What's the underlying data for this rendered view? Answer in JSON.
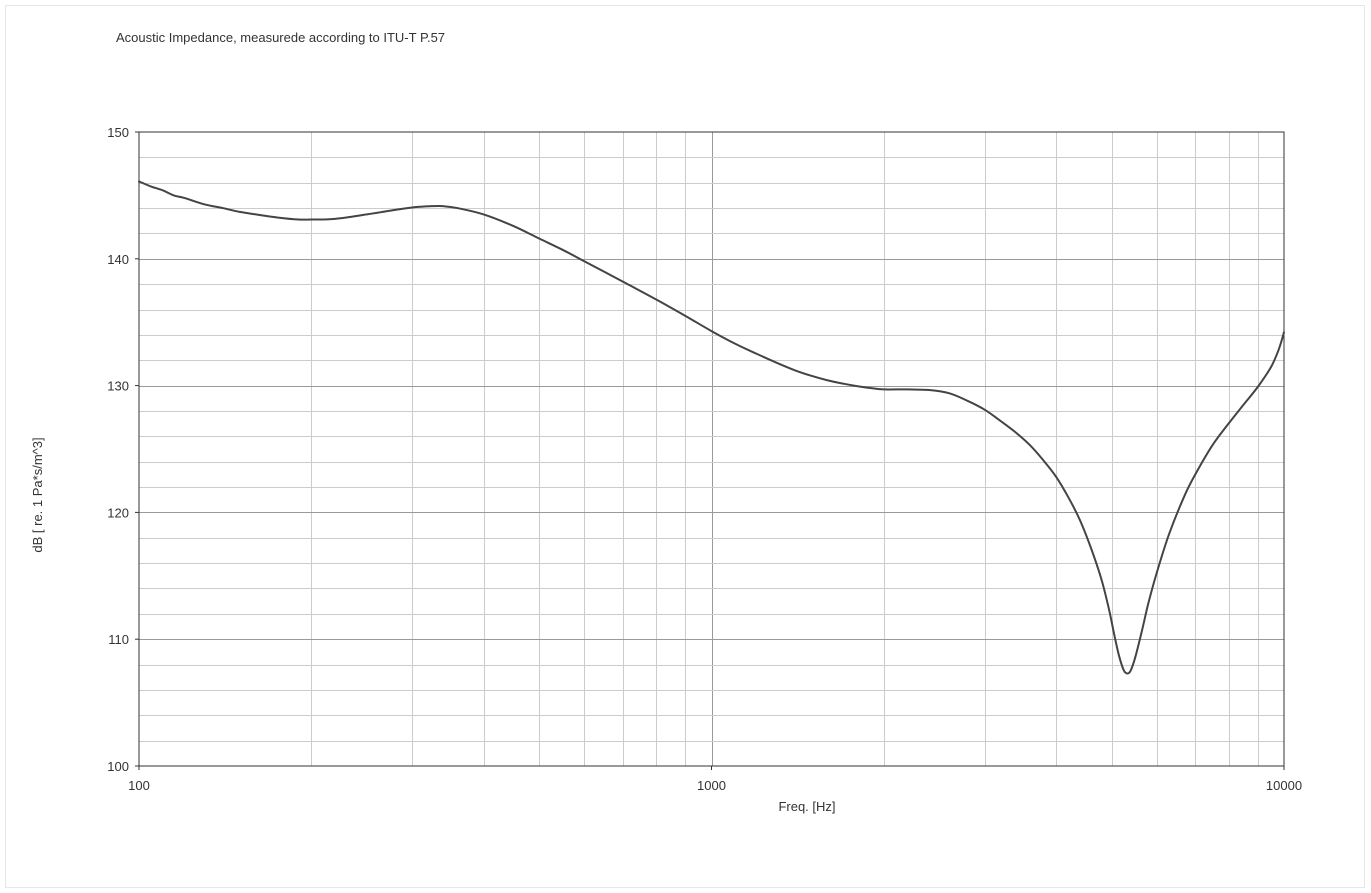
{
  "chart_data": {
    "type": "line",
    "title": "Acoustic Impedance, measurede according to ITU-T P.57",
    "xlabel": "Freq. [Hz]",
    "ylabel": "dB [ re. 1 Pa*s/m^3]",
    "xscale": "log",
    "xlim": [
      100,
      10000
    ],
    "ylim": [
      100,
      150
    ],
    "x_ticks": [
      {
        "value": 100,
        "label": "100"
      },
      {
        "value": 1000,
        "label": "1000"
      },
      {
        "value": 10000,
        "label": "10000"
      }
    ],
    "y_ticks": [
      {
        "value": 100,
        "label": "100"
      },
      {
        "value": 110,
        "label": "110"
      },
      {
        "value": 120,
        "label": "120"
      },
      {
        "value": 130,
        "label": "130"
      },
      {
        "value": 140,
        "label": "140"
      },
      {
        "value": 150,
        "label": "150"
      }
    ],
    "grid": true,
    "legend": "none",
    "colors": {
      "line": "#444444",
      "major_grid": "#9a9a9a",
      "minor_grid": "#cccccc",
      "axis": "#333333",
      "text": "#333333"
    },
    "series": [
      {
        "values": [
          [
            100,
            146.1
          ],
          [
            105,
            145.7
          ],
          [
            110,
            145.4
          ],
          [
            115,
            145.0
          ],
          [
            120,
            144.8
          ],
          [
            130,
            144.3
          ],
          [
            140,
            144.0
          ],
          [
            150,
            143.7
          ],
          [
            160,
            143.5
          ],
          [
            175,
            143.25
          ],
          [
            190,
            143.1
          ],
          [
            200,
            143.1
          ],
          [
            220,
            143.15
          ],
          [
            250,
            143.5
          ],
          [
            275,
            143.8
          ],
          [
            300,
            144.05
          ],
          [
            325,
            144.15
          ],
          [
            340,
            144.15
          ],
          [
            360,
            144.0
          ],
          [
            400,
            143.5
          ],
          [
            450,
            142.6
          ],
          [
            500,
            141.6
          ],
          [
            550,
            140.7
          ],
          [
            600,
            139.8
          ],
          [
            700,
            138.2
          ],
          [
            800,
            136.8
          ],
          [
            900,
            135.5
          ],
          [
            1000,
            134.3
          ],
          [
            1100,
            133.3
          ],
          [
            1200,
            132.5
          ],
          [
            1300,
            131.8
          ],
          [
            1400,
            131.2
          ],
          [
            1500,
            130.75
          ],
          [
            1600,
            130.4
          ],
          [
            1700,
            130.15
          ],
          [
            1800,
            129.95
          ],
          [
            1900,
            129.8
          ],
          [
            2000,
            129.7
          ],
          [
            2200,
            129.7
          ],
          [
            2400,
            129.65
          ],
          [
            2600,
            129.4
          ],
          [
            2800,
            128.8
          ],
          [
            3000,
            128.1
          ],
          [
            3200,
            127.2
          ],
          [
            3400,
            126.3
          ],
          [
            3600,
            125.3
          ],
          [
            3800,
            124.1
          ],
          [
            4000,
            122.8
          ],
          [
            4200,
            121.2
          ],
          [
            4400,
            119.4
          ],
          [
            4600,
            117.2
          ],
          [
            4800,
            114.7
          ],
          [
            4950,
            112.3
          ],
          [
            5050,
            110.4
          ],
          [
            5150,
            108.7
          ],
          [
            5250,
            107.55
          ],
          [
            5330,
            107.3
          ],
          [
            5400,
            107.55
          ],
          [
            5500,
            108.6
          ],
          [
            5650,
            110.7
          ],
          [
            5800,
            112.9
          ],
          [
            6000,
            115.3
          ],
          [
            6300,
            118.3
          ],
          [
            6700,
            121.3
          ],
          [
            7000,
            123.0
          ],
          [
            7500,
            125.3
          ],
          [
            8000,
            127.0
          ],
          [
            8500,
            128.5
          ],
          [
            9000,
            129.9
          ],
          [
            9500,
            131.5
          ],
          [
            9800,
            132.9
          ],
          [
            10000,
            134.2
          ]
        ]
      }
    ]
  }
}
